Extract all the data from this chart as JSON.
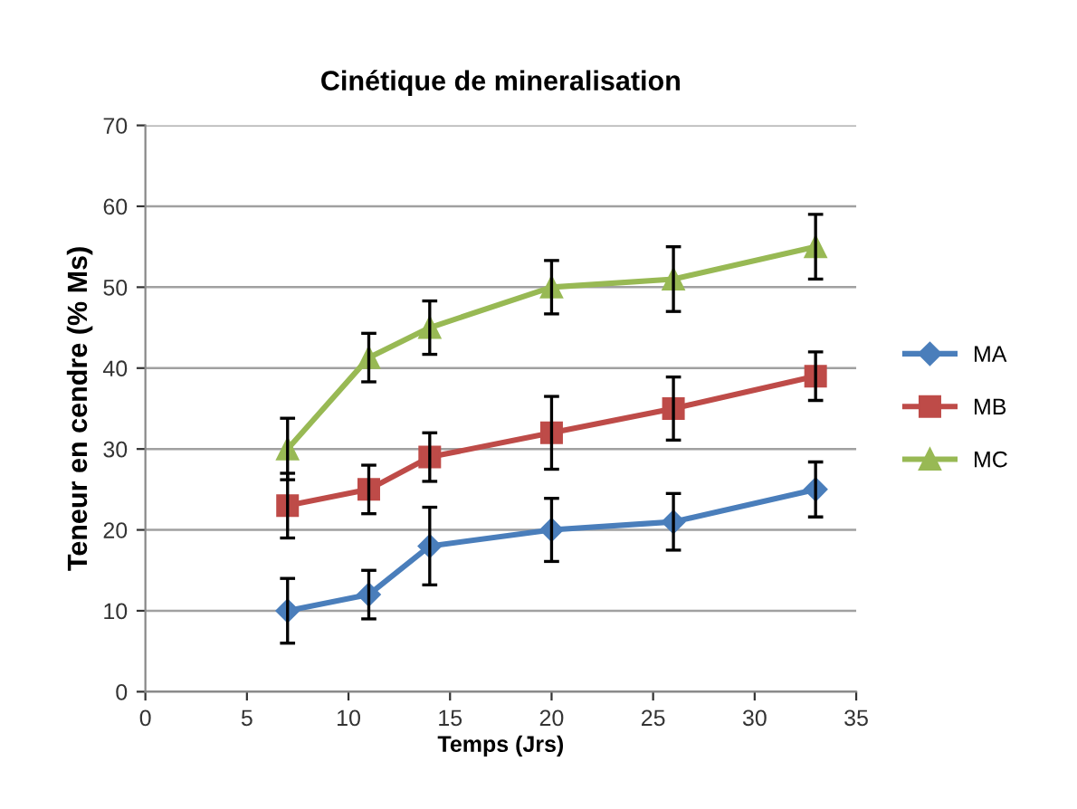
{
  "chart_data": {
    "type": "line",
    "title": "Cinétique de mineralisation",
    "xlabel": "Temps (Jrs)",
    "ylabel": "Teneur en cendre (% Ms)",
    "x": [
      7,
      11,
      14,
      20,
      26,
      33
    ],
    "series": [
      {
        "name": "MA",
        "color": "#4a7ebb",
        "marker": "diamond",
        "values": [
          10,
          12,
          18,
          20,
          21,
          25
        ],
        "errors": [
          4,
          3,
          4.8,
          3.9,
          3.5,
          3.4
        ]
      },
      {
        "name": "MB",
        "color": "#be4b48",
        "marker": "square",
        "values": [
          23,
          25,
          29,
          32,
          35,
          39
        ],
        "errors": [
          4,
          3,
          3,
          4.5,
          3.9,
          3
        ]
      },
      {
        "name": "MC",
        "color": "#98b954",
        "marker": "triangle",
        "values": [
          30,
          41.3,
          45,
          50,
          51,
          55
        ],
        "errors": [
          3.8,
          3,
          3.3,
          3.3,
          4,
          4
        ]
      }
    ],
    "xlim": [
      0,
      35
    ],
    "xticks": [
      0,
      5,
      10,
      15,
      20,
      25,
      30,
      35
    ],
    "ylim": [
      0,
      70
    ],
    "yticks": [
      0,
      10,
      20,
      30,
      40,
      50,
      60,
      70
    ],
    "grid": "y",
    "legend": "right",
    "line_style": "solid"
  }
}
